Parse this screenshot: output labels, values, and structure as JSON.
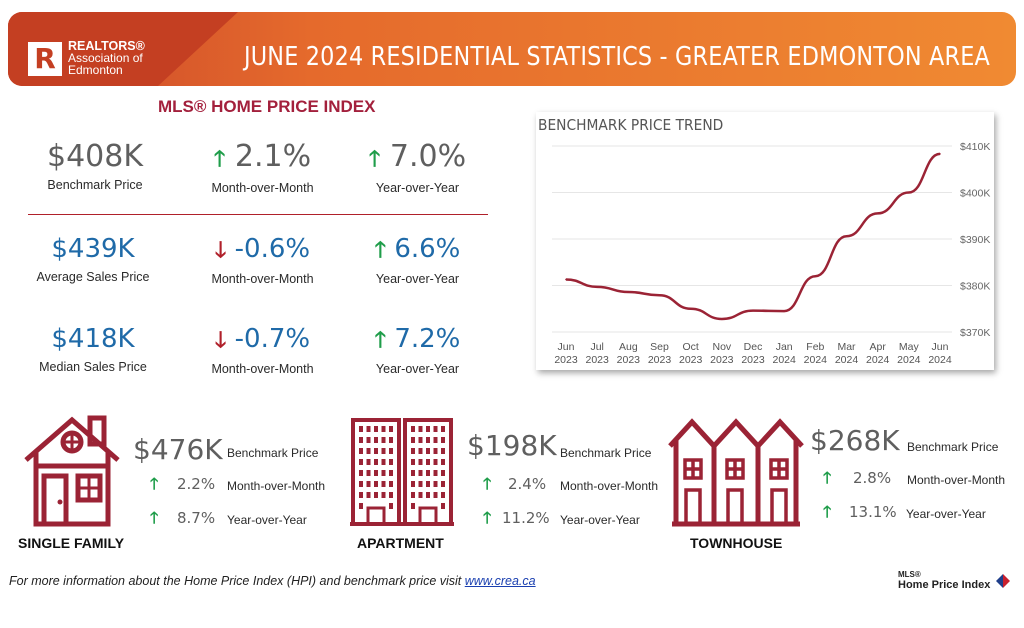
{
  "header": {
    "logo_line1": "REALTORS®",
    "logo_line2": "Association of",
    "logo_line3": "Edmonton",
    "logo_letter": "R",
    "title": "JUNE 2024 RESIDENTIAL STATISTICS - GREATER EDMONTON AREA"
  },
  "hpi": {
    "title": "MLS® HOME PRICE INDEX",
    "rows": [
      {
        "value": "$408K",
        "label": "Benchmark Price",
        "mom": "2.1%",
        "mom_dir": "up",
        "mom_label": "Month-over-Month",
        "yoy": "7.0%",
        "yoy_dir": "up",
        "yoy_label": "Year-over-Year"
      },
      {
        "value": "$439K",
        "label": "Average Sales Price",
        "mom": "-0.6%",
        "mom_dir": "down",
        "mom_label": "Month-over-Month",
        "yoy": "6.6%",
        "yoy_dir": "up",
        "yoy_label": "Year-over-Year"
      },
      {
        "value": "$418K",
        "label": "Median Sales Price",
        "mom": "-0.7%",
        "mom_dir": "down",
        "mom_label": "Month-over-Month",
        "yoy": "7.2%",
        "yoy_dir": "up",
        "yoy_label": "Year-over-Year"
      }
    ]
  },
  "chart_data": {
    "type": "line",
    "title": "BENCHMARK PRICE TREND",
    "x_months": [
      "Jun",
      "Jul",
      "Aug",
      "Sep",
      "Oct",
      "Nov",
      "Dec",
      "Jan",
      "Feb",
      "Mar",
      "Apr",
      "May",
      "Jun"
    ],
    "x_years": [
      "2023",
      "2023",
      "2023",
      "2023",
      "2023",
      "2023",
      "2023",
      "2024",
      "2024",
      "2024",
      "2024",
      "2024",
      "2024"
    ],
    "series": [
      {
        "values": [
          381.3,
          379.7,
          378.6,
          377.9,
          375.0,
          372.8,
          374.6,
          374.5,
          382.0,
          390.6,
          395.5,
          400.0,
          408.3
        ]
      }
    ],
    "ylim": [
      370,
      410
    ],
    "yticks": [
      370,
      380,
      390,
      400,
      410
    ],
    "ytick_labels": [
      "$370K",
      "$380K",
      "$390K",
      "$400K",
      "$410K"
    ],
    "line_color": "#9b2335",
    "grid": true
  },
  "properties": [
    {
      "name": "SINGLE FAMILY",
      "icon": "house-icon",
      "value": "$476K",
      "label": "Benchmark Price",
      "mom": "2.2%",
      "mom_label": "Month-over-Month",
      "yoy": "8.7%",
      "yoy_label": "Year-over-Year"
    },
    {
      "name": "APARTMENT",
      "icon": "apartment-icon",
      "value": "$198K",
      "label": "Benchmark Price",
      "mom": "2.4%",
      "mom_label": "Month-over-Month",
      "yoy": "11.2%",
      "yoy_label": "Year-over-Year"
    },
    {
      "name": "TOWNHOUSE",
      "icon": "townhouse-icon",
      "value": "$268K",
      "label": "Benchmark Price",
      "mom": "2.8%",
      "mom_label": "Month-over-Month",
      "yoy": "13.1%",
      "yoy_label": "Year-over-Year"
    }
  ],
  "footer": {
    "text": "For more information about the Home Price Index (HPI) and benchmark price visit ",
    "link": "www.crea.ca"
  },
  "hpi_logo": {
    "mls": "MLS®",
    "text": "Home Price Index"
  },
  "colors": {
    "accent": "#a3203c",
    "banner": "#e56a2c",
    "up": "#1f9d4a",
    "down": "#b0202a",
    "blue": "#1f6aa8"
  },
  "arrows": {
    "up": "🡑",
    "down": "🡓"
  }
}
